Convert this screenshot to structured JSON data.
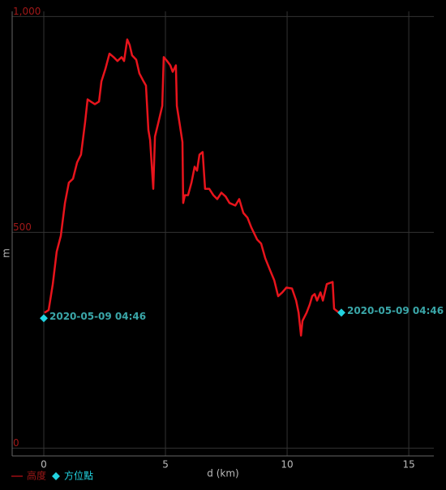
{
  "chart_data": {
    "type": "line",
    "xlabel": "d (km)",
    "ylabel": "m",
    "xlim": [
      -1.3,
      16.03
    ],
    "ylim": [
      -18,
      1012
    ],
    "xticks": [
      0,
      5,
      10,
      15
    ],
    "yticks": [
      0,
      500,
      {
        "value": 1000,
        "label": "1,000"
      }
    ],
    "grid": true,
    "series": [
      {
        "name": "高度",
        "color": "#e8141c",
        "x": [
          0.03,
          0.2,
          0.37,
          0.53,
          0.7,
          0.87,
          1.03,
          1.2,
          1.37,
          1.53,
          1.7,
          1.8,
          1.93,
          2.1,
          2.27,
          2.37,
          2.53,
          2.7,
          2.87,
          3.03,
          3.2,
          3.3,
          3.43,
          3.53,
          3.63,
          3.8,
          3.93,
          4.07,
          4.2,
          4.3,
          4.37,
          4.5,
          4.57,
          4.7,
          4.87,
          4.93,
          5.07,
          5.2,
          5.3,
          5.43,
          5.47,
          5.6,
          5.7,
          5.73,
          5.8,
          5.93,
          6.07,
          6.2,
          6.3,
          6.4,
          6.53,
          6.63,
          6.8,
          6.97,
          7.13,
          7.3,
          7.47,
          7.63,
          7.87,
          8.03,
          8.2,
          8.37,
          8.53,
          8.77,
          8.93,
          9.1,
          9.3,
          9.47,
          9.63,
          9.8,
          9.97,
          10.2,
          10.37,
          10.47,
          10.57,
          10.63,
          10.8,
          10.93,
          11.03,
          11.13,
          11.23,
          11.37,
          11.47,
          11.63,
          11.87,
          11.93,
          12.13
        ],
        "values": [
          314,
          320,
          380,
          455,
          492,
          568,
          615,
          624,
          662,
          680,
          756,
          808,
          803,
          797,
          803,
          850,
          878,
          914,
          906,
          897,
          906,
          897,
          947,
          934,
          910,
          900,
          868,
          853,
          840,
          737,
          714,
          601,
          722,
          752,
          793,
          906,
          897,
          887,
          872,
          887,
          793,
          746,
          709,
          568,
          586,
          586,
          615,
          652,
          643,
          680,
          686,
          601,
          601,
          586,
          577,
          592,
          583,
          568,
          562,
          577,
          545,
          534,
          511,
          483,
          474,
          440,
          412,
          389,
          352,
          361,
          372,
          370,
          342,
          314,
          261,
          295,
          314,
          333,
          352,
          357,
          342,
          361,
          342,
          380,
          385,
          323,
          314
        ]
      }
    ],
    "markers": {
      "name": "方位點",
      "color": "#22d3e0",
      "x": [
        0,
        12.23
      ],
      "values": [
        301,
        314
      ],
      "labels": [
        "2020-05-09 04:46",
        "2020-05-09 04:46"
      ]
    }
  }
}
